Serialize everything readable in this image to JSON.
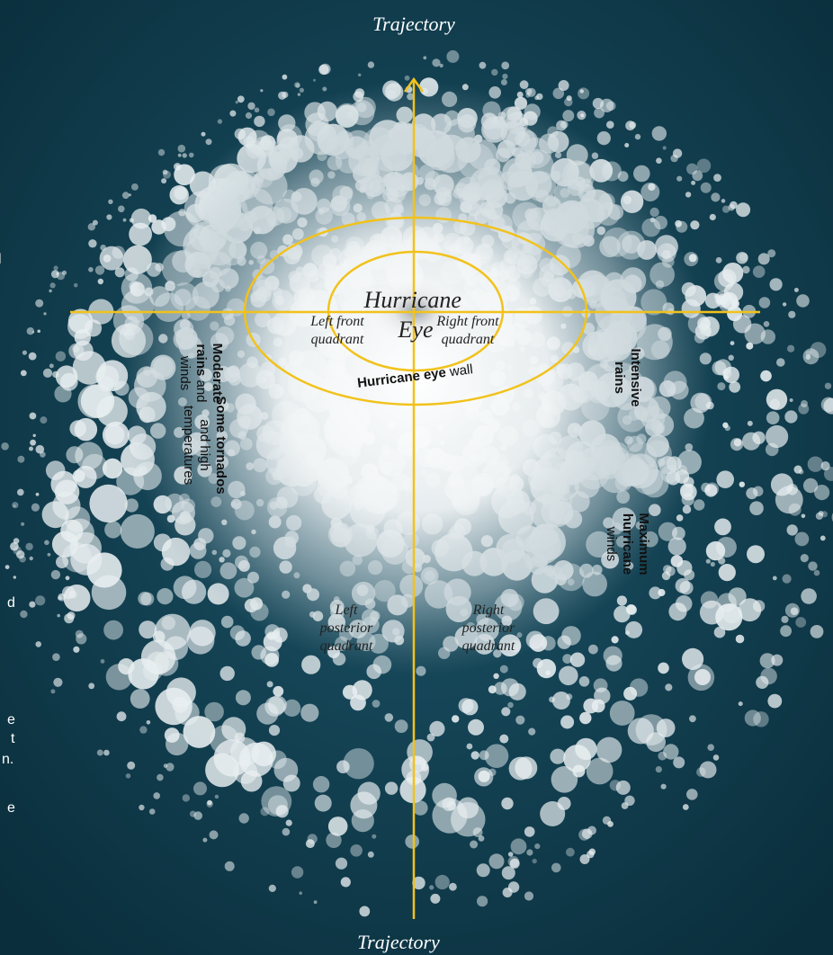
{
  "trajectory_top": "Trajectory",
  "trajectory_bottom": "Trajectory",
  "eye": {
    "lines": [
      "Hurricane",
      "Eye"
    ]
  },
  "eye_wall": {
    "bold": "Hurricane eye",
    "regular": "wall"
  },
  "quadrants": [
    {
      "lines": [
        "Left front",
        "quadrant"
      ]
    },
    {
      "lines": [
        "Right front",
        "quadrant"
      ]
    },
    {
      "lines": [
        "Left",
        "posterior",
        "quadrant"
      ]
    },
    {
      "lines": [
        "Right",
        "posterior",
        "quadrant"
      ]
    }
  ],
  "effects": [
    {
      "lines": [
        [
          {
            "text": "Moderate",
            "bold": true
          }
        ],
        [
          {
            "text": "rains",
            "bold": true
          },
          {
            "text": " and",
            "bold": false
          }
        ],
        [
          {
            "text": "winds",
            "bold": false
          }
        ]
      ]
    },
    {
      "lines": [
        [
          {
            "text": "Intensive",
            "bold": true
          }
        ],
        [
          {
            "text": "rains",
            "bold": true
          }
        ]
      ]
    },
    {
      "lines": [
        [
          {
            "text": "Some tornados",
            "bold": true
          }
        ],
        [
          {
            "text": "and high",
            "bold": false
          }
        ],
        [
          {
            "text": "temperatures",
            "bold": false
          }
        ]
      ]
    },
    {
      "lines": [
        [
          {
            "text": "Maximum",
            "bold": true
          }
        ],
        [
          {
            "text": "hurricane",
            "bold": true
          }
        ],
        [
          {
            "text": "winds",
            "bold": false
          }
        ]
      ]
    }
  ],
  "cropped_text": [
    "l",
    "d",
    "e",
    "t",
    "n.",
    "e"
  ]
}
